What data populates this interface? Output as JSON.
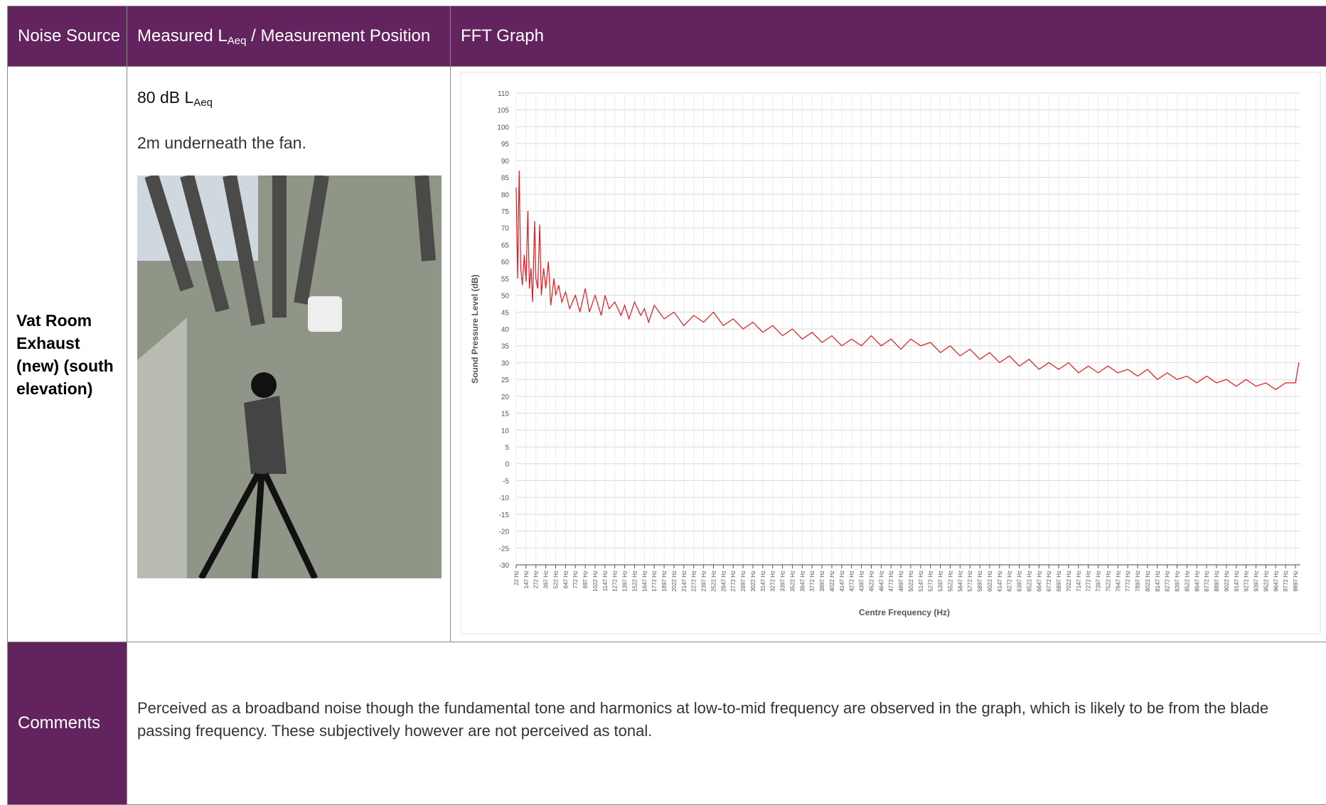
{
  "table": {
    "header": [
      "Noise Source",
      {
        "main": "Measured L",
        "sub": "Aeq",
        "rest": " / Measurement Position"
      },
      "FFT Graph"
    ],
    "row": {
      "source": "Vat Room Exhaust (new) (south elevation)",
      "level": "80 dB L",
      "level_sub": "Aeq",
      "position": "2m underneath the fan."
    },
    "comments": {
      "label": "Comments",
      "text": "Perceived as a broadband noise though the fundamental tone and harmonics at low-to-mid frequency are observed in the graph, which is likely to be from the blade passing frequency.  These subjectively however are not perceived as tonal."
    }
  },
  "chart_data": {
    "type": "line",
    "ylabel": "Sound Pressure Level (dB)",
    "xlabel": "Centre Frequency (Hz)",
    "color": "#e0191f",
    "grid": true,
    "ylim": [
      -30,
      110
    ],
    "yticks": [
      -30,
      -25,
      -20,
      -15,
      -10,
      -5,
      0,
      5,
      10,
      15,
      20,
      25,
      30,
      35,
      40,
      45,
      50,
      55,
      60,
      65,
      70,
      75,
      80,
      85,
      90,
      95,
      100,
      105,
      110
    ],
    "xlim": [
      22,
      9960
    ],
    "xticks": [
      {
        "value": 22,
        "label": "22 Hz"
      },
      {
        "value": 147,
        "label": "147 Hz"
      },
      {
        "value": 272,
        "label": "272 Hz"
      },
      {
        "value": 397,
        "label": "397 Hz"
      },
      {
        "value": 522,
        "label": "522 Hz"
      },
      {
        "value": 647,
        "label": "647 Hz"
      },
      {
        "value": 772,
        "label": "772 Hz"
      },
      {
        "value": 897,
        "label": "897 Hz"
      },
      {
        "value": 1022,
        "label": "1022 Hz"
      },
      {
        "value": 1147,
        "label": "1147 Hz"
      },
      {
        "value": 1272,
        "label": "1272 Hz"
      },
      {
        "value": 1397,
        "label": "1397 Hz"
      },
      {
        "value": 1522,
        "label": "1522 Hz"
      },
      {
        "value": 1647,
        "label": "1647 Hz"
      },
      {
        "value": 1772,
        "label": "1772 Hz"
      },
      {
        "value": 1897,
        "label": "1897 Hz"
      },
      {
        "value": 2022,
        "label": "2022 Hz"
      },
      {
        "value": 2147,
        "label": "2147 Hz"
      },
      {
        "value": 2272,
        "label": "2272 Hz"
      },
      {
        "value": 2397,
        "label": "2397 Hz"
      },
      {
        "value": 2522,
        "label": "2522 Hz"
      },
      {
        "value": 2647,
        "label": "2647 Hz"
      },
      {
        "value": 2772,
        "label": "2772 Hz"
      },
      {
        "value": 2897,
        "label": "2897 Hz"
      },
      {
        "value": 3022,
        "label": "3022 Hz"
      },
      {
        "value": 3147,
        "label": "3147 Hz"
      },
      {
        "value": 3272,
        "label": "3272 Hz"
      },
      {
        "value": 3397,
        "label": "3397 Hz"
      },
      {
        "value": 3522,
        "label": "3522 Hz"
      },
      {
        "value": 3647,
        "label": "3647 Hz"
      },
      {
        "value": 3772,
        "label": "3772 Hz"
      },
      {
        "value": 3897,
        "label": "3897 Hz"
      },
      {
        "value": 4022,
        "label": "4022 Hz"
      },
      {
        "value": 4147,
        "label": "4147 Hz"
      },
      {
        "value": 4272,
        "label": "4272 Hz"
      },
      {
        "value": 4397,
        "label": "4397 Hz"
      },
      {
        "value": 4522,
        "label": "4522 Hz"
      },
      {
        "value": 4647,
        "label": "4647 Hz"
      },
      {
        "value": 4772,
        "label": "4772 Hz"
      },
      {
        "value": 4897,
        "label": "4897 Hz"
      },
      {
        "value": 5022,
        "label": "5022 Hz"
      },
      {
        "value": 5147,
        "label": "5147 Hz"
      },
      {
        "value": 5272,
        "label": "5272 Hz"
      },
      {
        "value": 5397,
        "label": "5397 Hz"
      },
      {
        "value": 5522,
        "label": "5522 Hz"
      },
      {
        "value": 5647,
        "label": "5647 Hz"
      },
      {
        "value": 5772,
        "label": "5772 Hz"
      },
      {
        "value": 5897,
        "label": "5897 Hz"
      },
      {
        "value": 6022,
        "label": "6022 Hz"
      },
      {
        "value": 6147,
        "label": "6147 Hz"
      },
      {
        "value": 6272,
        "label": "6272 Hz"
      },
      {
        "value": 6397,
        "label": "6397 Hz"
      },
      {
        "value": 6522,
        "label": "6522 Hz"
      },
      {
        "value": 6647,
        "label": "6647 Hz"
      },
      {
        "value": 6772,
        "label": "6772 Hz"
      },
      {
        "value": 6897,
        "label": "6897 Hz"
      },
      {
        "value": 7022,
        "label": "7022 Hz"
      },
      {
        "value": 7147,
        "label": "7147 Hz"
      },
      {
        "value": 7272,
        "label": "7272 Hz"
      },
      {
        "value": 7397,
        "label": "7397 Hz"
      },
      {
        "value": 7522,
        "label": "7522 Hz"
      },
      {
        "value": 7647,
        "label": "7647 Hz"
      },
      {
        "value": 7772,
        "label": "7772 Hz"
      },
      {
        "value": 7897,
        "label": "7897 Hz"
      },
      {
        "value": 8022,
        "label": "8022 Hz"
      },
      {
        "value": 8147,
        "label": "8147 Hz"
      },
      {
        "value": 8272,
        "label": "8272 Hz"
      },
      {
        "value": 8397,
        "label": "8397 Hz"
      },
      {
        "value": 8522,
        "label": "8522 Hz"
      },
      {
        "value": 8647,
        "label": "8647 Hz"
      },
      {
        "value": 8772,
        "label": "8772 Hz"
      },
      {
        "value": 8897,
        "label": "8897 Hz"
      },
      {
        "value": 9022,
        "label": "9022 Hz"
      },
      {
        "value": 9147,
        "label": "9147 Hz"
      },
      {
        "value": 9272,
        "label": "9272 Hz"
      },
      {
        "value": 9397,
        "label": "9397 Hz"
      },
      {
        "value": 9522,
        "label": "9522 Hz"
      },
      {
        "value": 9647,
        "label": "9647 Hz"
      },
      {
        "value": 9772,
        "label": "9772 Hz"
      },
      {
        "value": 9897,
        "label": "9897 Hz"
      }
    ],
    "x": [
      22,
      40,
      60,
      80,
      100,
      125,
      147,
      170,
      190,
      210,
      230,
      255,
      272,
      295,
      320,
      340,
      370,
      397,
      430,
      460,
      500,
      522,
      560,
      600,
      647,
      700,
      772,
      830,
      897,
      950,
      1022,
      1100,
      1147,
      1200,
      1272,
      1350,
      1397,
      1450,
      1522,
      1600,
      1647,
      1700,
      1772,
      1897,
      2022,
      2147,
      2272,
      2397,
      2522,
      2647,
      2772,
      2897,
      3022,
      3147,
      3272,
      3397,
      3522,
      3647,
      3772,
      3897,
      4022,
      4147,
      4272,
      4397,
      4522,
      4647,
      4772,
      4897,
      5022,
      5147,
      5272,
      5397,
      5522,
      5647,
      5772,
      5897,
      6022,
      6147,
      6272,
      6397,
      6522,
      6647,
      6772,
      6897,
      7022,
      7147,
      7272,
      7397,
      7522,
      7647,
      7772,
      7897,
      8022,
      8147,
      8272,
      8397,
      8522,
      8647,
      8772,
      8897,
      9022,
      9147,
      9272,
      9397,
      9522,
      9647,
      9772,
      9897,
      9940
    ],
    "values": [
      82,
      55,
      87,
      58,
      53,
      62,
      54,
      75,
      52,
      58,
      48,
      72,
      55,
      52,
      71,
      50,
      58,
      52,
      60,
      47,
      55,
      50,
      53,
      48,
      51,
      46,
      50,
      45,
      52,
      45,
      50,
      44,
      50,
      46,
      48,
      44,
      47,
      43,
      48,
      44,
      46,
      42,
      47,
      43,
      45,
      41,
      44,
      42,
      45,
      41,
      43,
      40,
      42,
      39,
      41,
      38,
      40,
      37,
      39,
      36,
      38,
      35,
      37,
      35,
      38,
      35,
      37,
      34,
      37,
      35,
      36,
      33,
      35,
      32,
      34,
      31,
      33,
      30,
      32,
      29,
      31,
      28,
      30,
      28,
      30,
      27,
      29,
      27,
      29,
      27,
      28,
      26,
      28,
      25,
      27,
      25,
      26,
      24,
      26,
      24,
      25,
      23,
      25,
      23,
      24,
      22,
      24,
      24,
      30
    ]
  }
}
